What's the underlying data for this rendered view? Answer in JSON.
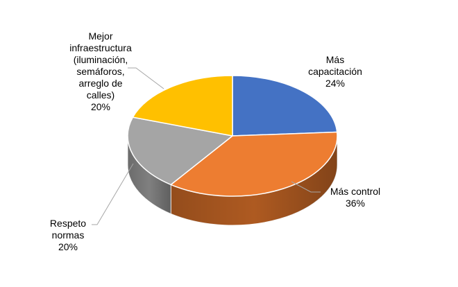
{
  "chart_data": {
    "type": "pie",
    "title": "",
    "three_d": true,
    "series": [
      {
        "values": [
          24,
          36,
          20,
          20
        ],
        "categories": [
          "Más capacitación",
          "Más control",
          "Respeto normas",
          "Mejor infraestructura (iluminación, semáforos, arreglo de calles)"
        ]
      }
    ],
    "data_labels": [
      [
        "Más",
        "capacitación",
        "24%"
      ],
      [
        "Más control",
        "36%"
      ],
      [
        "Respeto",
        "normas",
        "20%"
      ],
      [
        "Mejor",
        "infraestructura",
        "(iluminación,",
        "semáforos,",
        "arreglo de",
        "calles)",
        "20%"
      ]
    ],
    "colors": [
      "#4472c4",
      "#ed7d31",
      "#a5a5a5",
      "#ffc000"
    ],
    "side_colors": [
      "#2f528f",
      "#ae5a21",
      "#7f7f7f",
      "#bf9000"
    ],
    "legend": "none"
  }
}
